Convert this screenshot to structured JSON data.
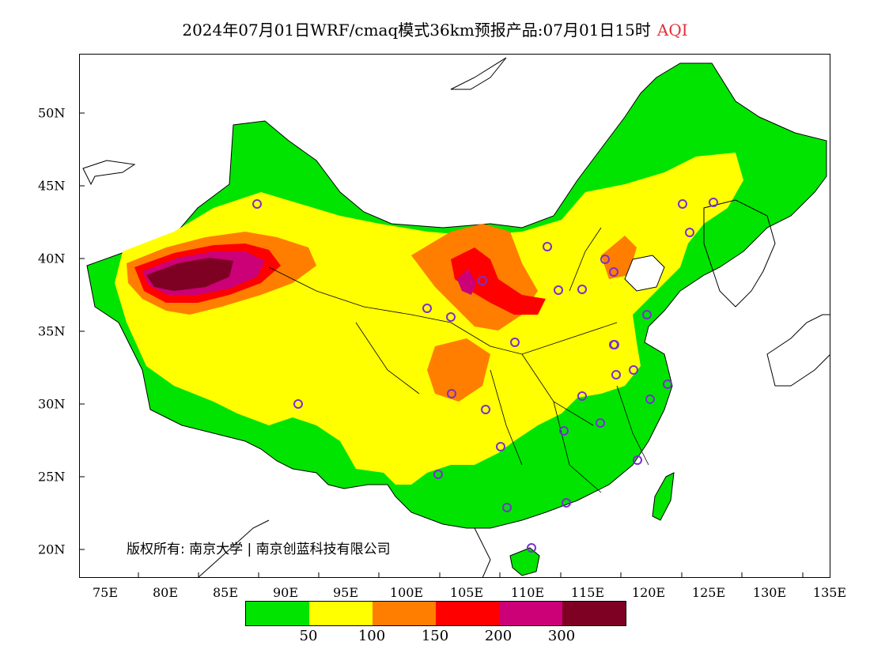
{
  "title": {
    "main": "2024年07月01日WRF/cmaq模式36km预报产品:07月01日15时",
    "product": "AQI"
  },
  "map": {
    "y_labels": [
      "50N",
      "45N",
      "40N",
      "35N",
      "30N",
      "25N",
      "20N"
    ],
    "x_labels": [
      "75E",
      "80E",
      "85E",
      "90E",
      "95E",
      "100E",
      "105E",
      "110E",
      "115E",
      "120E",
      "125E",
      "130E",
      "135E"
    ],
    "copyright": "版权所有: 南京大学 | 南京创蓝科技有限公司",
    "colors": {
      "ocean": "#ffffff",
      "good": "#00e400",
      "moderate": "#ffff00",
      "usg": "#ff7e00",
      "unhealthy": "#ff0000",
      "very_unhealthy": "#cc0077",
      "hazardous": "#7e0023",
      "station_marker": "#7a2fd0"
    }
  },
  "legend": {
    "colors": [
      "#00e400",
      "#ffff00",
      "#ff7e00",
      "#ff0000",
      "#cc0077",
      "#7e0023"
    ],
    "labels": [
      "50",
      "100",
      "150",
      "200",
      "300"
    ]
  }
}
